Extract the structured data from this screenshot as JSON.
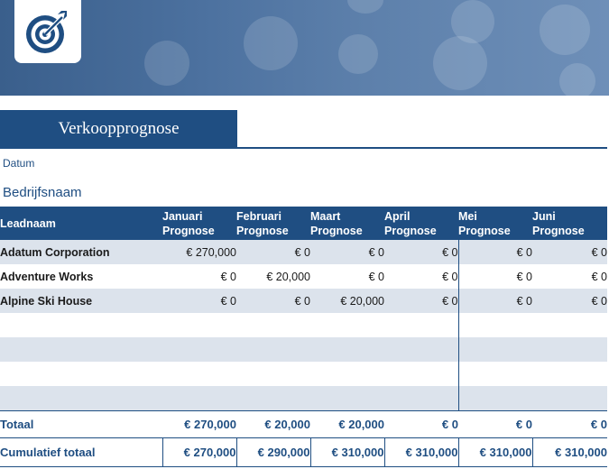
{
  "header": {
    "title": "Verkoopprognose",
    "date_label": "Datum",
    "company_label": "Bedrijfsnaam",
    "logo_icon": "target-icon"
  },
  "colors": {
    "primary": "#1f4e82",
    "band": "#dce3ec",
    "banner": "#4d72a0"
  },
  "table": {
    "columns": [
      {
        "line1": "Leadnaam",
        "line2": ""
      },
      {
        "line1": "Januari",
        "line2": "Prognose"
      },
      {
        "line1": "Februari",
        "line2": "Prognose"
      },
      {
        "line1": "Maart",
        "line2": "Prognose"
      },
      {
        "line1": "April",
        "line2": "Prognose"
      },
      {
        "line1": "Mei",
        "line2": "Prognose"
      },
      {
        "line1": "Juni",
        "line2": "Prognose"
      }
    ],
    "rows": [
      {
        "name": "Adatum Corporation",
        "values": [
          "€ 270,000",
          "€ 0",
          "€ 0",
          "€ 0",
          "€ 0",
          "€ 0"
        ]
      },
      {
        "name": "Adventure Works",
        "values": [
          "€ 0",
          "€ 20,000",
          "€ 0",
          "€ 0",
          "€ 0",
          "€ 0"
        ]
      },
      {
        "name": "Alpine Ski House",
        "values": [
          "€ 0",
          "€ 0",
          "€ 20,000",
          "€ 0",
          "€ 0",
          "€ 0"
        ]
      },
      {
        "name": "",
        "values": [
          "",
          "",
          "",
          "",
          "",
          ""
        ]
      },
      {
        "name": "",
        "values": [
          "",
          "",
          "",
          "",
          "",
          ""
        ]
      },
      {
        "name": "",
        "values": [
          "",
          "",
          "",
          "",
          "",
          ""
        ]
      },
      {
        "name": "",
        "values": [
          "",
          "",
          "",
          "",
          "",
          ""
        ]
      }
    ],
    "total": {
      "label": "Totaal",
      "values": [
        "€ 270,000",
        "€ 20,000",
        "€ 20,000",
        "€ 0",
        "€ 0",
        "€ 0"
      ]
    },
    "cumulative": {
      "label": "Cumulatief totaal",
      "values": [
        "€ 270,000",
        "€ 290,000",
        "€ 310,000",
        "€ 310,000",
        "€ 310,000",
        "€ 310,000"
      ]
    }
  }
}
